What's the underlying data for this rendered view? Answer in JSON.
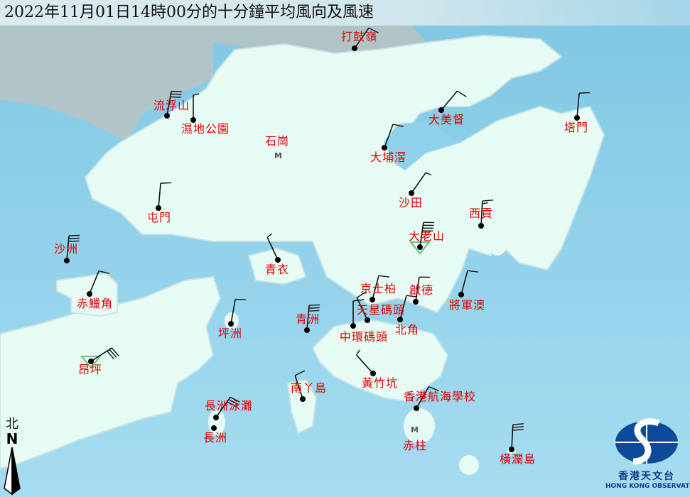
{
  "title": "2022年11月01日14時00分的十分鐘平均風向及風速",
  "compass": {
    "zh": "北",
    "en": "N"
  },
  "logo": {
    "zh": "香港天文台",
    "en": "HONG KONG OBSERVATORY"
  },
  "colors": {
    "sea": "#8fd0ea",
    "land": "#e6fbf4",
    "label": "#e00000",
    "barb": "#111111",
    "triangle": "#4caf50"
  },
  "stations": [
    {
      "name": "打鼓嶺",
      "wind_dir_deg": 35,
      "full_barbs": 1,
      "half_barbs": 0
    },
    {
      "name": "流浮山",
      "wind_dir_deg": 10,
      "full_barbs": 3,
      "half_barbs": 0
    },
    {
      "name": "濕地公園",
      "wind_dir_deg": 0,
      "full_barbs": 0,
      "half_barbs": 1
    },
    {
      "name": "大美督",
      "wind_dir_deg": 40,
      "full_barbs": 1,
      "half_barbs": 0
    },
    {
      "name": "塔門",
      "wind_dir_deg": 5,
      "full_barbs": 1,
      "half_barbs": 0
    },
    {
      "name": "大埔滘",
      "wind_dir_deg": 20,
      "full_barbs": 1,
      "half_barbs": 0
    },
    {
      "name": "沙田",
      "wind_dir_deg": 35,
      "full_barbs": 0,
      "half_barbs": 1
    },
    {
      "name": "屯門",
      "wind_dir_deg": 5,
      "full_barbs": 1,
      "half_barbs": 0
    },
    {
      "name": "西貢",
      "wind_dir_deg": 3,
      "full_barbs": 1,
      "half_barbs": 1
    },
    {
      "name": "大老山",
      "wind_dir_deg": 8,
      "full_barbs": 4,
      "half_barbs": 0,
      "marker": "triangle"
    },
    {
      "name": "沙洲",
      "wind_dir_deg": 5,
      "full_barbs": 3,
      "half_barbs": 0
    },
    {
      "name": "青衣",
      "wind_dir_deg": 335,
      "full_barbs": 0,
      "half_barbs": 1
    },
    {
      "name": "赤鱲角",
      "wind_dir_deg": 22,
      "full_barbs": 1,
      "half_barbs": 0
    },
    {
      "name": "京士柏",
      "wind_dir_deg": 15,
      "full_barbs": 1,
      "half_barbs": 0
    },
    {
      "name": "啟德",
      "wind_dir_deg": 8,
      "full_barbs": 1,
      "half_barbs": 0
    },
    {
      "name": "將軍澳",
      "wind_dir_deg": 15,
      "full_barbs": 1,
      "half_barbs": 0
    },
    {
      "name": "天星碼頭",
      "wind_dir_deg": 335,
      "full_barbs": 1,
      "half_barbs": 0
    },
    {
      "name": "中環碼頭",
      "wind_dir_deg": 0,
      "full_barbs": 1,
      "half_barbs": 0
    },
    {
      "name": "北角",
      "wind_dir_deg": 15,
      "full_barbs": 1,
      "half_barbs": 0
    },
    {
      "name": "青洲",
      "wind_dir_deg": 5,
      "full_barbs": 3,
      "half_barbs": 0
    },
    {
      "name": "坪洲",
      "wind_dir_deg": 10,
      "full_barbs": 1,
      "half_barbs": 0
    },
    {
      "name": "昂坪",
      "wind_dir_deg": 57,
      "full_barbs": 3,
      "half_barbs": 0,
      "marker": "triangle"
    },
    {
      "name": "黃竹坑",
      "wind_dir_deg": 318,
      "full_barbs": 0,
      "half_barbs": 1
    },
    {
      "name": "南丫島",
      "wind_dir_deg": 342,
      "full_barbs": 1,
      "half_barbs": 0
    },
    {
      "name": "香港航海學校",
      "wind_dir_deg": 30,
      "full_barbs": 1,
      "half_barbs": 0
    },
    {
      "name": "長洲泳灘",
      "wind_dir_deg": 35,
      "full_barbs": 3,
      "half_barbs": 0
    },
    {
      "name": "長洲"
    },
    {
      "name": "橫瀾島",
      "wind_dir_deg": 3,
      "full_barbs": 3,
      "half_barbs": 0
    }
  ],
  "no_wind_stations": [
    {
      "name": "石崗",
      "marker": "M"
    },
    {
      "name": "赤柱",
      "marker": "M"
    }
  ]
}
